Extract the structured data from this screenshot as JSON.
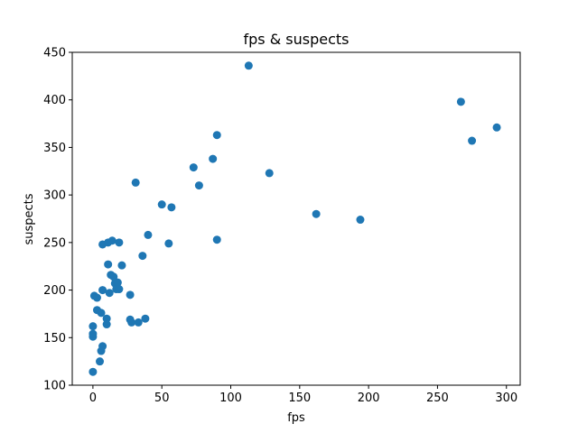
{
  "chart_data": {
    "type": "scatter",
    "title": "fps & suspects",
    "xlabel": "fps",
    "ylabel": "suspects",
    "xlim": [
      -15,
      310
    ],
    "ylim": [
      100,
      450
    ],
    "xticks": [
      0,
      50,
      100,
      150,
      200,
      250,
      300
    ],
    "yticks": [
      100,
      150,
      200,
      250,
      300,
      350,
      400,
      450
    ],
    "grid": false,
    "marker_color": "#1f77b4",
    "series": [
      {
        "x": [
          0,
          0,
          0,
          0,
          1,
          3,
          3,
          5,
          6,
          6,
          7,
          7,
          7,
          10,
          10,
          11,
          11,
          12,
          13,
          14,
          15,
          16,
          17,
          18,
          19,
          19,
          21,
          27,
          27,
          28,
          31,
          33,
          36,
          38,
          40,
          50,
          55,
          57,
          73,
          77,
          87,
          90,
          90,
          113,
          128,
          162,
          194,
          267,
          275,
          293
        ],
        "y": [
          114,
          151,
          154,
          162,
          194,
          192,
          179,
          125,
          176,
          136,
          141,
          200,
          248,
          164,
          170,
          227,
          250,
          197,
          216,
          252,
          214,
          207,
          201,
          208,
          250,
          201,
          226,
          195,
          169,
          166,
          313,
          166,
          236,
          170,
          258,
          290,
          249,
          287,
          329,
          310,
          338,
          363,
          253,
          436,
          323,
          280,
          274,
          398,
          357,
          371
        ]
      }
    ]
  }
}
